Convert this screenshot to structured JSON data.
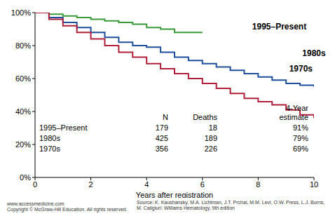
{
  "chart_data": {
    "type": "line",
    "line_style": "step",
    "grid": false,
    "x_label": "Years after registration",
    "x": [
      0,
      0.5,
      1,
      1.5,
      2,
      2.5,
      3,
      3.5,
      4,
      4.5,
      5,
      5.5,
      6,
      6.5,
      7,
      7.5,
      8,
      8.5,
      9,
      9.5,
      10
    ],
    "series": [
      {
        "name": "1995–Present",
        "color": "#3a9a3a",
        "values": [
          100,
          99,
          98,
          97,
          96,
          95,
          94,
          93,
          91,
          90,
          88,
          88,
          88,
          null,
          null,
          null,
          null,
          null,
          null,
          null,
          null
        ]
      },
      {
        "name": "1980s",
        "color": "#1f4f9c",
        "values": [
          100,
          97,
          94,
          91,
          88,
          85,
          82,
          80,
          79,
          76,
          73,
          71,
          69,
          67,
          65,
          63,
          61,
          59,
          57,
          56,
          55
        ]
      },
      {
        "name": "1970s",
        "color": "#b0203a",
        "values": [
          100,
          96,
          92,
          88,
          84,
          80,
          76,
          73,
          69,
          66,
          63,
          60,
          57,
          54,
          51,
          48,
          46,
          44,
          41,
          38,
          36
        ]
      }
    ],
    "xlim": [
      0,
      10
    ],
    "xticks": [
      0,
      2,
      4,
      6,
      8,
      10
    ],
    "ylim": [
      0,
      100
    ],
    "yticks": [
      {
        "value": 0,
        "label": "0%"
      },
      {
        "value": 20,
        "label": "20%"
      },
      {
        "value": 40,
        "label": "40%"
      },
      {
        "value": 60,
        "label": "60%"
      },
      {
        "value": 80,
        "label": "80%"
      },
      {
        "value": 100,
        "label": "100%"
      }
    ],
    "table": {
      "columns": [
        "N",
        "Deaths",
        "4-Year estimate"
      ],
      "rows": [
        [
          "1995–Present",
          179,
          18,
          "91%"
        ],
        [
          "1980s",
          425,
          189,
          "79%"
        ],
        [
          "1970s",
          356,
          226,
          "69%"
        ]
      ]
    },
    "source": [
      "Source: K. Kaushansky, M.A. Lichtman, J.T. Prchal, M.M. Levi, O.W. Press, L.J. Burns,",
      "M. Caligiuri: Williams Hematology, 9th edition",
      "www.accessmedicine.com",
      "Copyright © McGraw-Hill Education.  All rights reserved."
    ]
  }
}
